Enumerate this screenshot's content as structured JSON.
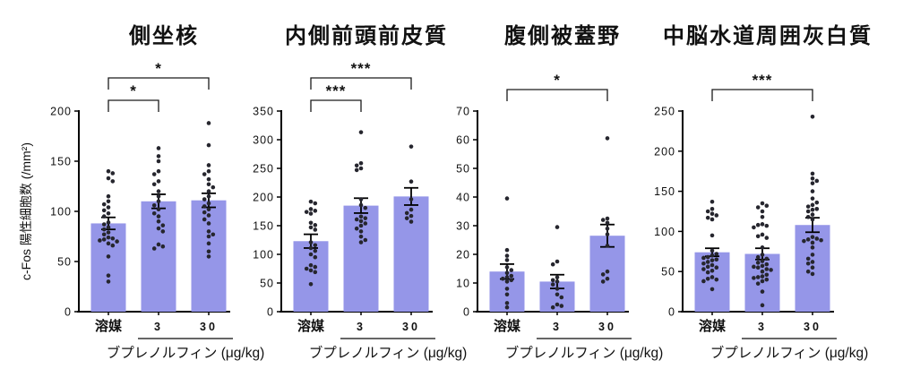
{
  "figure": {
    "y_axis_label": "c-Fos 陽性細胞数 (/mm²)",
    "dose_axis_label": "ブプレノルフィン (μg/kg)",
    "colors": {
      "bar": "#9596e8",
      "dot": "#26262e",
      "axis": "#000000",
      "background": "#ffffff"
    }
  },
  "chart_data": [
    {
      "type": "bar",
      "title": "側坐核",
      "ylabel": "c-Fos 陽性細胞数 (/mm²)",
      "xlabel": "",
      "group_label": "ブプレノルフィン (μg/kg)",
      "categories": [
        "溶媒",
        "3",
        "30"
      ],
      "ylim": [
        0,
        200
      ],
      "ytick_step": 50,
      "grid": false,
      "legend": false,
      "means": [
        88,
        110,
        111
      ],
      "sem": [
        6,
        7,
        7
      ],
      "points": [
        [
          140,
          138,
          133,
          130,
          115,
          110,
          107,
          104,
          101,
          98,
          95,
          89,
          87,
          84,
          82,
          79,
          77,
          74,
          73,
          72,
          71,
          70,
          68,
          66,
          55,
          36,
          30
        ],
        [
          163,
          155,
          150,
          140,
          137,
          130,
          127,
          120,
          115,
          110,
          106,
          102,
          98,
          95,
          90,
          86,
          83,
          80,
          67,
          65,
          63
        ],
        [
          188,
          166,
          146,
          140,
          137,
          132,
          127,
          124,
          120,
          115,
          112,
          108,
          105,
          102,
          99,
          96,
          92,
          88,
          80,
          77,
          75,
          68,
          60,
          55
        ]
      ],
      "significance": [
        {
          "from": 0,
          "to": 1,
          "label": "*"
        },
        {
          "from": 0,
          "to": 2,
          "label": "*"
        }
      ]
    },
    {
      "type": "bar",
      "title": "内側前頭前皮質",
      "ylabel": "",
      "xlabel": "",
      "group_label": "ブプレノルフィン (μg/kg)",
      "categories": [
        "溶媒",
        "3",
        "30"
      ],
      "ylim": [
        0,
        350
      ],
      "ytick_step": 50,
      "grid": false,
      "legend": false,
      "means": [
        123,
        185,
        201
      ],
      "sem": [
        12,
        13,
        15
      ],
      "points": [
        [
          192,
          189,
          179,
          176,
          174,
          171,
          155,
          151,
          147,
          143,
          121,
          116,
          111,
          106,
          100,
          95,
          81,
          78,
          75,
          72,
          69,
          48
        ],
        [
          313,
          259,
          255,
          250,
          247,
          196,
          186,
          181,
          166,
          163,
          161,
          158,
          154,
          150,
          145,
          140,
          131,
          125,
          121
        ],
        [
          288,
          227,
          196,
          178,
          172,
          167,
          163,
          157
        ]
      ],
      "significance": [
        {
          "from": 0,
          "to": 1,
          "label": "***"
        },
        {
          "from": 0,
          "to": 2,
          "label": "***"
        }
      ]
    },
    {
      "type": "bar",
      "title": "腹側被蓋野",
      "ylabel": "",
      "xlabel": "",
      "group_label": "ブプレノルフィン (μg/kg)",
      "categories": [
        "溶媒",
        "3",
        "30"
      ],
      "ylim": [
        0,
        70
      ],
      "ytick_step": 10,
      "grid": false,
      "legend": false,
      "means": [
        14,
        10.5,
        26.5
      ],
      "sem": [
        2.6,
        2.4,
        3.9
      ],
      "points": [
        [
          39.5,
          21.5,
          19.5,
          18,
          15.5,
          14.5,
          13.5,
          12.5,
          12,
          11.5,
          11,
          10.5,
          8,
          6,
          3,
          1.5
        ],
        [
          29.5,
          17.5,
          16.5,
          12,
          11,
          10.5,
          9.5,
          8,
          6,
          5,
          2.5,
          2,
          1.5
        ],
        [
          60.5,
          32.5,
          32,
          31,
          29,
          27,
          23,
          14,
          13,
          11.5,
          10.5
        ]
      ],
      "significance": [
        {
          "from": 0,
          "to": 2,
          "label": "*"
        }
      ]
    },
    {
      "type": "bar",
      "title": "中脳水道周囲灰白質",
      "ylabel": "",
      "xlabel": "",
      "group_label": "ブプレノルフィン (μg/kg)",
      "categories": [
        "溶媒",
        "3",
        "30"
      ],
      "ylim": [
        0,
        250
      ],
      "ytick_step": 50,
      "grid": false,
      "legend": false,
      "means": [
        74,
        72,
        108
      ],
      "sem": [
        5,
        7,
        9
      ],
      "points": [
        [
          137,
          128,
          125,
          122,
          120,
          117,
          115,
          95,
          76,
          72,
          70,
          68,
          67,
          65,
          64,
          62,
          60,
          58,
          56,
          55,
          53,
          51,
          49,
          43,
          41,
          40,
          38,
          28
        ],
        [
          135,
          132,
          130,
          125,
          118,
          109,
          108,
          107,
          105,
          96,
          94,
          92,
          80,
          71,
          68,
          66,
          63,
          61,
          59,
          57,
          56,
          55,
          53,
          52,
          50,
          46,
          44,
          43,
          42,
          40,
          38,
          35,
          25,
          8
        ],
        [
          243,
          172,
          166,
          163,
          160,
          150,
          141,
          136,
          133,
          131,
          128,
          127,
          125,
          121,
          118,
          115,
          93,
          91,
          90,
          89,
          88,
          86,
          80,
          71,
          66,
          62,
          60,
          55,
          50,
          47
        ]
      ],
      "significance": [
        {
          "from": 0,
          "to": 2,
          "label": "***"
        }
      ]
    }
  ]
}
